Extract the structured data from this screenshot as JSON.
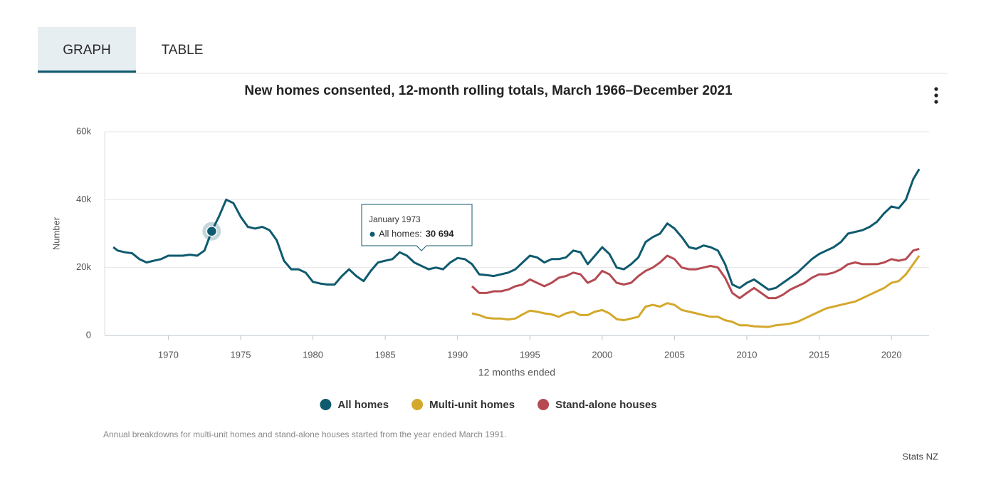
{
  "tabs": [
    "GRAPH",
    "TABLE"
  ],
  "footnote": "Annual breakdowns for multi-unit homes and stand-alone houses started from the year ended March 1991.",
  "source": "Stats NZ",
  "chart_data": {
    "type": "line",
    "title": "New homes consented, 12-month rolling totals, March 1966–December 2021",
    "x_label": "12 months ended",
    "y_label": "Number",
    "xlim": [
      1965.6,
      2022.6
    ],
    "xticks": [
      1970,
      1975,
      1980,
      1985,
      1990,
      1995,
      2000,
      2005,
      2010,
      2015,
      2020
    ],
    "ylim": [
      0,
      60000
    ],
    "yticks": [
      0,
      {
        "value": 20000,
        "label": "20k"
      },
      {
        "value": 40000,
        "label": "40k"
      },
      {
        "value": 60000,
        "label": "60k"
      }
    ],
    "grid": true,
    "legend": "bottom",
    "x": [
      1966.2,
      1966.5,
      1967,
      1967.5,
      1968,
      1968.5,
      1969,
      1969.5,
      1970,
      1970.5,
      1971,
      1971.5,
      1972,
      1972.5,
      1973,
      1973.5,
      1974,
      1974.5,
      1975,
      1975.5,
      1976,
      1976.5,
      1977,
      1977.5,
      1978,
      1978.5,
      1979,
      1979.5,
      1980,
      1980.5,
      1981,
      1981.5,
      1982,
      1982.5,
      1983,
      1983.5,
      1984,
      1984.5,
      1985,
      1985.5,
      1986,
      1986.5,
      1987,
      1987.5,
      1988,
      1988.5,
      1989,
      1989.5,
      1990,
      1990.5,
      1991,
      1991.5,
      1992,
      1992.5,
      1993,
      1993.5,
      1994,
      1994.5,
      1995,
      1995.5,
      1996,
      1996.5,
      1997,
      1997.5,
      1998,
      1998.5,
      1999,
      1999.5,
      2000,
      2000.5,
      2001,
      2001.5,
      2002,
      2002.5,
      2003,
      2003.5,
      2004,
      2004.5,
      2005,
      2005.5,
      2006,
      2006.5,
      2007,
      2007.5,
      2008,
      2008.5,
      2009,
      2009.5,
      2010,
      2010.5,
      2011,
      2011.5,
      2012,
      2012.5,
      2013,
      2013.5,
      2014,
      2014.5,
      2015,
      2015.5,
      2016,
      2016.5,
      2017,
      2017.5,
      2018,
      2018.5,
      2019,
      2019.5,
      2020,
      2020.5,
      2021,
      2021.5,
      2021.92
    ],
    "series": [
      {
        "name": "All homes",
        "color": "#0f5a6e",
        "values": [
          26000,
          25000,
          24500,
          24200,
          22500,
          21500,
          22000,
          22500,
          23500,
          23500,
          23500,
          23800,
          23500,
          25000,
          30694,
          35000,
          40000,
          39000,
          35000,
          32000,
          31500,
          32000,
          31000,
          28000,
          22000,
          19500,
          19500,
          18500,
          15800,
          15300,
          15000,
          15000,
          17500,
          19500,
          17500,
          16000,
          19000,
          21500,
          22000,
          22500,
          24500,
          23500,
          21500,
          20500,
          19500,
          20000,
          19500,
          21500,
          22800,
          22500,
          21000,
          18000,
          17800,
          17500,
          18000,
          18500,
          19500,
          21500,
          23500,
          23000,
          21500,
          22500,
          22500,
          23000,
          25000,
          24500,
          21000,
          23500,
          26000,
          24000,
          20000,
          19500,
          21000,
          23000,
          27500,
          29000,
          30000,
          33000,
          31500,
          29000,
          26000,
          25500,
          26500,
          26000,
          25000,
          21000,
          15000,
          14000,
          15500,
          16500,
          15000,
          13500,
          14000,
          15500,
          17000,
          18500,
          20500,
          22500,
          24000,
          25000,
          26000,
          27500,
          30000,
          30500,
          31000,
          32000,
          33500,
          36000,
          38000,
          37500,
          40000,
          46000,
          49000
        ]
      },
      {
        "name": "Multi-unit homes",
        "color": "#d4a82c",
        "values": [
          null,
          null,
          null,
          null,
          null,
          null,
          null,
          null,
          null,
          null,
          null,
          null,
          null,
          null,
          null,
          null,
          null,
          null,
          null,
          null,
          null,
          null,
          null,
          null,
          null,
          null,
          null,
          null,
          null,
          null,
          null,
          null,
          null,
          null,
          null,
          null,
          null,
          null,
          null,
          null,
          null,
          null,
          null,
          null,
          null,
          null,
          null,
          null,
          null,
          null,
          6500,
          6000,
          5200,
          5000,
          5000,
          4700,
          5000,
          6200,
          7300,
          7000,
          6500,
          6200,
          5500,
          6500,
          7000,
          6000,
          6000,
          7000,
          7500,
          6500,
          4800,
          4500,
          5000,
          5500,
          8500,
          9000,
          8500,
          9500,
          9000,
          7500,
          7000,
          6500,
          6000,
          5500,
          5500,
          4500,
          4000,
          3000,
          3000,
          2700,
          2600,
          2500,
          3000,
          3200,
          3500,
          4000,
          5000,
          6000,
          7000,
          8000,
          8500,
          9000,
          9500,
          10000,
          11000,
          12000,
          13000,
          14000,
          15500,
          16000,
          18000,
          21000,
          23500
        ]
      },
      {
        "name": "Stand-alone houses",
        "color": "#b54a52",
        "values": [
          null,
          null,
          null,
          null,
          null,
          null,
          null,
          null,
          null,
          null,
          null,
          null,
          null,
          null,
          null,
          null,
          null,
          null,
          null,
          null,
          null,
          null,
          null,
          null,
          null,
          null,
          null,
          null,
          null,
          null,
          null,
          null,
          null,
          null,
          null,
          null,
          null,
          null,
          null,
          null,
          null,
          null,
          null,
          null,
          null,
          null,
          null,
          null,
          null,
          null,
          14500,
          12500,
          12500,
          13000,
          13000,
          13500,
          14500,
          15000,
          16500,
          15500,
          14500,
          15500,
          17000,
          17500,
          18500,
          18000,
          15500,
          16500,
          19000,
          18000,
          15500,
          15000,
          15500,
          17500,
          19000,
          20000,
          21500,
          23500,
          22500,
          20000,
          19500,
          19500,
          20000,
          20500,
          20000,
          17000,
          12500,
          11000,
          12500,
          14000,
          12500,
          11000,
          11000,
          12000,
          13500,
          14500,
          15500,
          17000,
          18000,
          18000,
          18500,
          19500,
          21000,
          21500,
          21000,
          21000,
          21000,
          21500,
          22500,
          22000,
          22500,
          25000,
          25500
        ]
      }
    ],
    "tooltip": {
      "date": "January 1973",
      "series": "All homes:",
      "x": 1973,
      "value": 30694,
      "value_label": "30 694"
    }
  }
}
